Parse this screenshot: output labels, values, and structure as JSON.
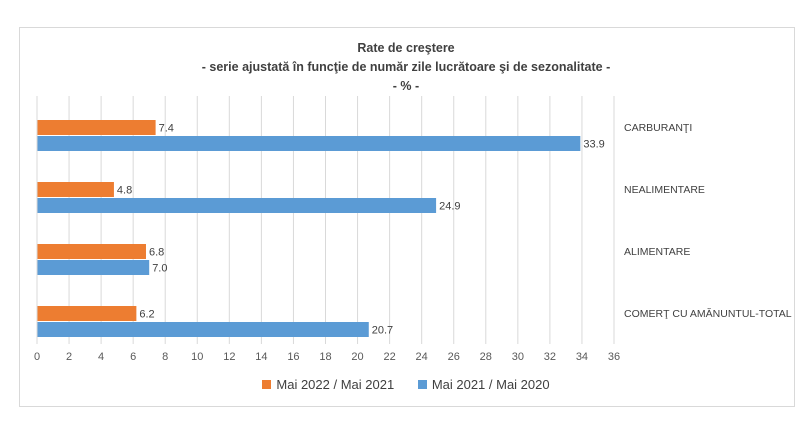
{
  "chart_data": {
    "type": "bar",
    "orientation": "horizontal",
    "title": "Rate de creştere",
    "subtitle": "- serie ajustată în funcţie de număr zile lucrătoare şi de sezonalitate -",
    "unit_line": "- % -",
    "categories": [
      "CARBURANŢI",
      "NEALIMENTARE",
      "ALIMENTARE",
      "COMERŢ CU AMĂNUNTUL-TOTAL"
    ],
    "series": [
      {
        "name": "Mai 2022 / Mai 2021",
        "color": "#ed7d31",
        "values": [
          7.4,
          4.8,
          6.8,
          6.2
        ]
      },
      {
        "name": "Mai 2021 / Mai 2020",
        "color": "#5b9bd5",
        "values": [
          33.9,
          24.9,
          7.0,
          20.7
        ]
      }
    ],
    "xlim": [
      0,
      36
    ],
    "xticks": [
      0,
      2,
      4,
      6,
      8,
      10,
      12,
      14,
      16,
      18,
      20,
      22,
      24,
      26,
      28,
      30,
      32,
      34,
      36
    ],
    "grid": true,
    "legend_position": "bottom"
  }
}
